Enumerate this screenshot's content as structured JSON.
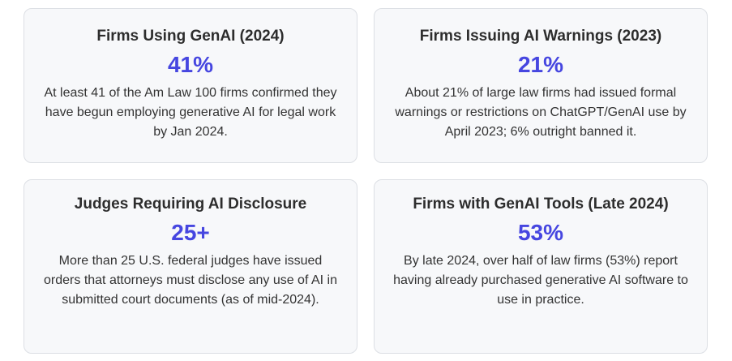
{
  "cards": [
    {
      "title": "Firms Using GenAI (2024)",
      "stat": "41%",
      "description": "At least 41 of the Am Law 100 firms confirmed they have begun employing generative AI for legal work by Jan 2024."
    },
    {
      "title": "Firms Issuing AI Warnings (2023)",
      "stat": "21%",
      "description": "About 21% of large law firms had issued formal warnings or restrictions on ChatGPT/GenAI use by April 2023; 6% outright banned it."
    },
    {
      "title": "Judges Requiring AI Disclosure",
      "stat": "25+",
      "description": "More than 25 U.S. federal judges have issued orders that attorneys must disclose any use of AI in submitted court documents (as of mid-2024)."
    },
    {
      "title": "Firms with GenAI Tools (Late 2024)",
      "stat": "53%",
      "description": "By late 2024, over half of law firms (53%) report having already purchased generative AI software to use in practice."
    }
  ],
  "colors": {
    "accent": "#4646e0",
    "card_background": "#f7f8fa",
    "card_border": "#dcdfe4"
  }
}
